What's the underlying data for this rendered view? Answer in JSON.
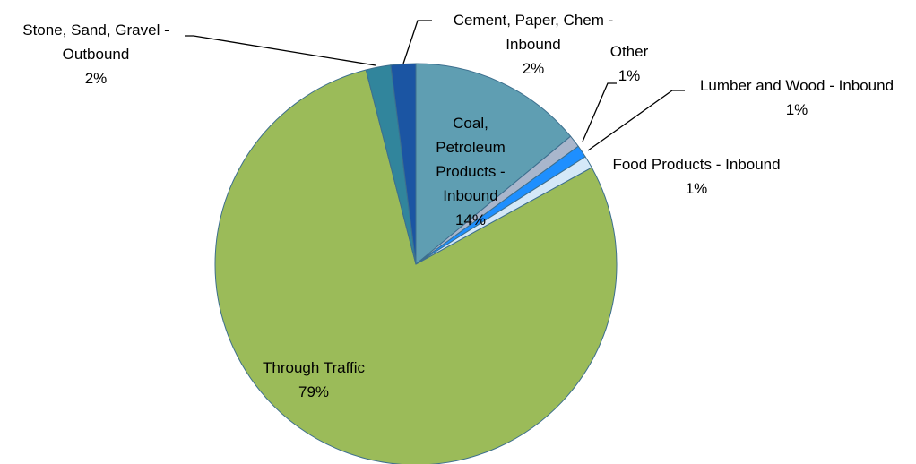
{
  "chart_data": {
    "type": "pie",
    "categories": [
      "Coal, Petroleum Products - Inbound",
      "Other",
      "Lumber and Wood - Inbound",
      "Food Products - Inbound",
      "Through Traffic",
      "Stone, Sand, Gravel - Outbound",
      "Cement, Paper, Chem - Inbound"
    ],
    "values": [
      14,
      1,
      1,
      1,
      79,
      2,
      2
    ],
    "value_labels": [
      "14%",
      "1%",
      "1%",
      "1%",
      "79%",
      "2%",
      "2%"
    ],
    "colors": [
      "#5f9eb2",
      "#a9b6cc",
      "#1e8fff",
      "#d4e8f8",
      "#9bbb59",
      "#31859c",
      "#1b55a3"
    ]
  }
}
